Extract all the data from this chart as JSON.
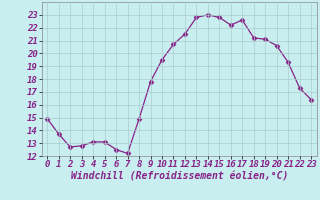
{
  "x": [
    0,
    1,
    2,
    3,
    4,
    5,
    6,
    7,
    8,
    9,
    10,
    11,
    12,
    13,
    14,
    15,
    16,
    17,
    18,
    19,
    20,
    21,
    22,
    23
  ],
  "y": [
    14.9,
    13.7,
    12.7,
    12.8,
    13.1,
    13.1,
    12.5,
    12.2,
    14.9,
    17.8,
    19.5,
    20.7,
    21.5,
    22.8,
    23.0,
    22.8,
    22.2,
    22.6,
    21.2,
    21.1,
    20.6,
    19.3,
    17.3,
    16.4
  ],
  "line_color": "#882288",
  "marker": "D",
  "marker_size": 2.5,
  "bg_color": "#c8eef0",
  "grid_color": "#aacccc",
  "xlabel": "Windchill (Refroidissement éolien,°C)",
  "xlabel_fontsize": 7,
  "tick_fontsize": 6.5,
  "ylim": [
    12,
    24
  ],
  "yticks": [
    12,
    13,
    14,
    15,
    16,
    17,
    18,
    19,
    20,
    21,
    22,
    23
  ],
  "xticks": [
    0,
    1,
    2,
    3,
    4,
    5,
    6,
    7,
    8,
    9,
    10,
    11,
    12,
    13,
    14,
    15,
    16,
    17,
    18,
    19,
    20,
    21,
    22,
    23
  ],
  "figwidth": 3.2,
  "figheight": 2.0,
  "dpi": 100
}
